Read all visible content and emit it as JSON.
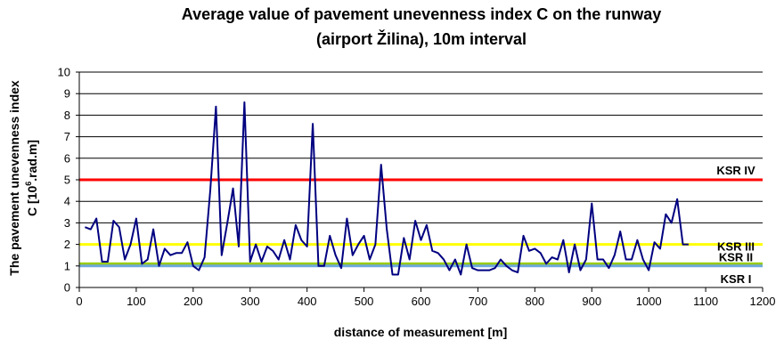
{
  "chart_data": {
    "type": "line",
    "title_line1": "Average value of pavement unevenness index C on the runway",
    "title_line2": "(airport Žilina), 10m interval",
    "xlabel": "distance of measurement [m]",
    "ylabel_main": "The pavement unevenness index",
    "ylabel_unit_pre": "C  [10",
    "ylabel_unit_sup": "6",
    "ylabel_unit_post": ".rad.m]",
    "xlim": [
      0,
      1200
    ],
    "ylim": [
      0,
      10
    ],
    "xticks": [
      0,
      100,
      200,
      300,
      400,
      500,
      600,
      700,
      800,
      900,
      1000,
      1100,
      1200
    ],
    "yticks": [
      0,
      1,
      2,
      3,
      4,
      5,
      6,
      7,
      8,
      9,
      10
    ],
    "grid": "horizontal",
    "series_color": "#000080",
    "thresholds": [
      {
        "label": "KSR IV",
        "value": 5.0,
        "color": "#ff0000"
      },
      {
        "label": "KSR III",
        "value": 2.0,
        "color": "#ffff00"
      },
      {
        "label": "KSR II",
        "value": 1.1,
        "color": "#99cc00"
      },
      {
        "label": "KSR I",
        "value": 1.0,
        "color": "#6fa8dc"
      }
    ],
    "series": [
      {
        "x": [
          10,
          20,
          30,
          40,
          50,
          60,
          70,
          80,
          90,
          100,
          110,
          120,
          130,
          140,
          150,
          160,
          170,
          180,
          190,
          200,
          210,
          220,
          230,
          240,
          250,
          260,
          270,
          280,
          290,
          300,
          310,
          320,
          330,
          340,
          350,
          360,
          370,
          380,
          390,
          400,
          410,
          420,
          430,
          440,
          450,
          460,
          470,
          480,
          490,
          500,
          510,
          520,
          530,
          540,
          550,
          560,
          570,
          580,
          590,
          600,
          610,
          620,
          630,
          640,
          650,
          660,
          670,
          680,
          690,
          700,
          710,
          720,
          730,
          740,
          750,
          760,
          770,
          780,
          790,
          800,
          810,
          820,
          830,
          840,
          850,
          860,
          870,
          880,
          890,
          900,
          910,
          920,
          930,
          940,
          950,
          960,
          970,
          980,
          990,
          1000,
          1010,
          1020,
          1030,
          1040,
          1050,
          1060,
          1070
        ],
        "y": [
          2.8,
          2.7,
          3.2,
          1.2,
          1.2,
          3.1,
          2.8,
          1.3,
          2.0,
          3.2,
          1.1,
          1.3,
          2.7,
          1.0,
          1.8,
          1.5,
          1.6,
          1.6,
          2.1,
          1.0,
          0.8,
          1.4,
          4.5,
          8.4,
          1.5,
          3.0,
          4.6,
          1.9,
          8.6,
          1.2,
          2.0,
          1.2,
          1.9,
          1.7,
          1.3,
          2.2,
          1.3,
          2.9,
          2.2,
          1.9,
          7.6,
          1.0,
          1.0,
          2.4,
          1.5,
          0.9,
          3.2,
          1.5,
          2.0,
          2.4,
          1.3,
          2.0,
          5.7,
          2.7,
          0.6,
          0.6,
          2.3,
          1.3,
          3.1,
          2.2,
          2.9,
          1.7,
          1.6,
          1.3,
          0.8,
          1.3,
          0.6,
          2.0,
          0.9,
          0.8,
          0.8,
          0.8,
          0.9,
          1.3,
          1.0,
          0.8,
          0.7,
          2.4,
          1.7,
          1.8,
          1.6,
          1.1,
          1.4,
          1.3,
          2.2,
          0.7,
          2.0,
          0.8,
          1.3,
          3.9,
          1.3,
          1.3,
          0.9,
          1.5,
          2.6,
          1.3,
          1.3,
          2.2,
          1.3,
          0.8,
          2.1,
          1.8,
          3.4,
          3.0,
          4.1,
          2.0,
          2.0
        ]
      }
    ]
  }
}
